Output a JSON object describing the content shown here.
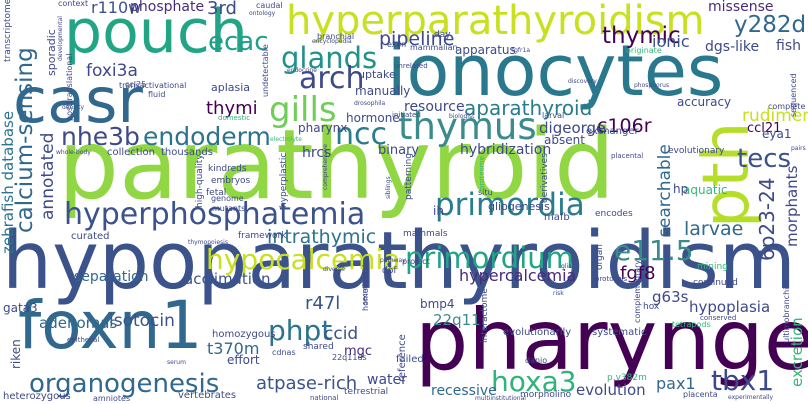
{
  "words": {
    "hypoparathyroidism": "hypoparathyroidism",
    "parathyroid": "parathyroid",
    "pharyngeal": "pharyngeal",
    "ionocytes": "ionocytes",
    "pouch": "pouch",
    "casr": "casr",
    "foxn1": "foxn1",
    "hyperparathyroidism": "hyperparathyroidism",
    "pth": "pth",
    "thymus": "thymus",
    "gills": "gills",
    "glands": "glands",
    "hyperphosphatemia": "hyperphosphatemia",
    "hypocalcemia": "hypocalcemia",
    "primordium": "primordium",
    "primordia": "primordia",
    "organogenesis": "organogenesis",
    "endoderm": "endoderm",
    "nhe3b": "nhe3b",
    "ncc": "ncc",
    "arch": "arch",
    "ecac": "ecac",
    "tecs": "tecs",
    "phpt": "phpt",
    "hoxa3": "hoxa3",
    "tbx1": "tbx1",
    "aparathyroid": "aparathyroid",
    "intrathymic": "intrathymic",
    "calcium_sensing": "calcium-sensing",
    "e11_5": "e11.5",
    "pipeline": "pipeline",
    "thymic": "thymic",
    "y282d": "y282d",
    "r110w": "r110w",
    "phosphate": "phosphate",
    "rd3": "3rd",
    "foxi3a": "foxi3a",
    "thymi": "thymi",
    "fgf8": "fgf8",
    "isotocin": "isotocin",
    "larvae": "larvae",
    "ccid": "ccid",
    "atpase_rich": "atpase-rich",
    "t370m": "t370m",
    "hypercalcemia": "hypercalcemia",
    "acclimation": "acclimation",
    "separation": "separation",
    "annotated": "annotated",
    "rudiment": "rudiment",
    "c106r": "c106r",
    "digeorge": "digeorge",
    "pax1": "pax1",
    "ionic": "ionic",
    "missense": "missense",
    "fish": "fish",
    "dgs_like": "dgs-like",
    "zebrafish_database": "zebrafish database",
    "searchable": "searchable",
    "morphants": "morphants",
    "p6q23_24": "6p23-24",
    "hypoplasia": "hypoplasia",
    "excretion": "excretion",
    "adenomas": "adenomas",
    "r47l": "r47l",
    "q22q11": "22q11",
    "bmp4": "bmp4",
    "g63s": "g63s",
    "evolution": "evolution",
    "recessive": "recessive",
    "water": "water",
    "mgc": "mgc",
    "resource": "resource",
    "hormone": "hormone",
    "binary": "binary",
    "hybridization": "hybridization",
    "hrcs": "hrcs",
    "pharynx": "pharynx",
    "accuracy": "accuracy",
    "aquatic": "aquatic",
    "hp": "hp",
    "ccl21": "ccl21",
    "eya1": "eya1",
    "uptake": "uptake",
    "apparatus": "apparatus",
    "manually": "manually",
    "aplasia": "aplasia",
    "thousands": "thousands",
    "collection": "collection",
    "curated": "curated",
    "effort": "effort",
    "homozygous": "homozygous",
    "vertebrates": "vertebrates",
    "riken": "riken",
    "gata3": "gata3",
    "heterozygous": "heterozygous",
    "amniotes": "amniotes",
    "failed": "failed",
    "ih": "ih",
    "gliogenesis": "gliogenesis",
    "mafb": "mafb",
    "encodes": "encodes",
    "exchanger": "exchanger",
    "hypercalcemia_small": "absent",
    "transcriptome": "transcriptome",
    "sporadic": "sporadic",
    "context": "context",
    "caudal": "caudal",
    "ontology": "ontology",
    "encyclopedia": "encyclopedia",
    "branchial": "branchial",
    "day": "day",
    "mammalian": "mammalian",
    "exon": "exon",
    "fgfr1a": "fgfr1a",
    "originate": "originate",
    "sequenced": "sequenced",
    "transactivational": "transactivational",
    "posttranslational": "posttranslational",
    "endocrine": "endocrine",
    "undetectable": "undetectable",
    "unrelated": "unrelated",
    "initiated": "initiated",
    "biologist": "biologist",
    "larval": "larval",
    "complete": "complete",
    "evolutionary": "evolutionary",
    "placental": "placental",
    "phosphorus": "phosphorus",
    "discovery": "discovery",
    "domestic": "domestic",
    "fluid": "fluid",
    "density": "density",
    "ccl25": "ccl25",
    "developmental": "developmental",
    "drosophila": "drosophila",
    "electrolyte": "electrolyte",
    "whole_body": "whole-body",
    "kindreds": "kindreds",
    "embryos": "embryos",
    "fetal": "fetal",
    "genome": "genome",
    "mutants": "mutants",
    "high_quality": "high-quality",
    "framework": "framework",
    "thymopoiesis": "thymopoiesis",
    "hyperplastic": "hyperplastic",
    "comprehensive": "comprehensive",
    "siblings": "siblings",
    "patterning": "patterning",
    "situ": "situ",
    "proteome": "proteome",
    "derivatives": "derivatives",
    "homeostasis": "homeostasis",
    "mammals": "mammals",
    "project": "project",
    "dpf": "dpf",
    "secreting": "secreting",
    "diverse": "diverse",
    "interactome": "interactome",
    "organ": "organ",
    "protocols": "protocols",
    "hox": "hox",
    "conserved": "conserved",
    "mining": "mining",
    "continued": "continued",
    "evolutionarily": "evolutionarily",
    "systematic": "systematic",
    "tetrapods": "tetrapods",
    "ultimobranchial": "ultimobranchial",
    "shared": "shared",
    "cdnas": "cdnas",
    "q22q11ds": "22q11ds",
    "national": "national",
    "terrestrial": "terrestrial",
    "multiinstitutional": "multiinstitutional",
    "reference": "reference",
    "danio": "danio",
    "morpholino": "morpholino",
    "placenta": "placenta",
    "experimentally": "experimentally",
    "complementary": "complementary",
    "p_v382m": "p.v382m",
    "epithelial": "epithelial",
    "serum": "serum",
    "risk": "risk",
    "glia": "glia",
    "pathway": "pathway",
    "pairs": "pairs"
  },
  "colors": {
    "viridis_purple": "#440154",
    "viridis_indigo": "#3b528b",
    "viridis_blue": "#31688e",
    "viridis_teal": "#21918c",
    "viridis_green": "#35b779",
    "viridis_lime": "#90d743",
    "viridis_yellow": "#c8e020"
  }
}
